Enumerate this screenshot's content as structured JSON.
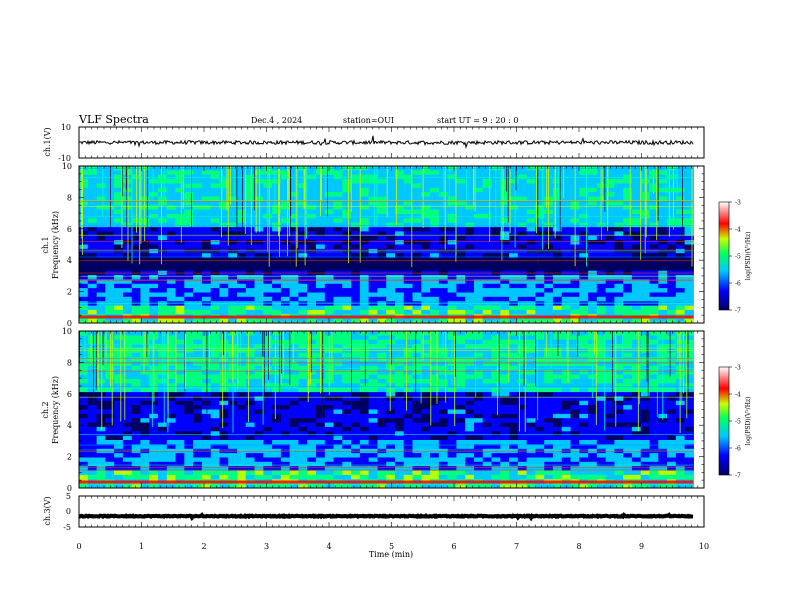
{
  "header": {
    "title": "VLF Spectra",
    "date": "Dec.4 , 2024",
    "station": "station=OUI",
    "start": "start  UT =  9 : 20 : 0"
  },
  "colors": {
    "spectrogram_low": "#000060",
    "spectrogram_mid": "#00c8ff",
    "spectrogram_high": "#ff0000",
    "trace": "#000000"
  },
  "chart_data": [
    {
      "type": "line",
      "name": "ch1-waveform",
      "ylabel": "ch.1(V)",
      "ylim": [
        -10,
        10
      ],
      "ytick_labels": [
        "10",
        "-10"
      ],
      "x_range_min": [
        0,
        9.83
      ],
      "baseline": 0,
      "amplitude": 1.2
    },
    {
      "type": "heatmap",
      "name": "ch1-spectrogram",
      "ylabel": [
        "ch.1",
        "Frequency (kHz)"
      ],
      "ylim": [
        0,
        10
      ],
      "yticks": [
        0,
        2,
        4,
        6,
        8,
        10
      ],
      "colorbar": {
        "label": "log(PSD)(V²/Hz)",
        "ticks": [
          "-3",
          "-4",
          "-5",
          "-6",
          "-7"
        ],
        "range": [
          -7,
          -3
        ]
      }
    },
    {
      "type": "heatmap",
      "name": "ch2-spectrogram",
      "ylabel": [
        "ch.2",
        "Frequency (kHz)"
      ],
      "ylim": [
        0,
        10
      ],
      "yticks": [
        0,
        2,
        4,
        6,
        8,
        10
      ],
      "colorbar": {
        "label": "log(PSD)(V²/Hz)",
        "ticks": [
          "-3",
          "-4",
          "-5",
          "-6",
          "-7"
        ],
        "range": [
          -7,
          -3
        ]
      }
    },
    {
      "type": "line",
      "name": "ch3-waveform",
      "ylabel": "ch.3(V)",
      "ylim": [
        -5,
        5
      ],
      "ytick_labels": [
        "5",
        "0",
        "-5"
      ],
      "x_range_min": [
        0,
        9.83
      ],
      "baseline": -1.5,
      "amplitude": 0.15
    }
  ],
  "xaxis": {
    "label": "Time (min)",
    "ticks": [
      "0",
      "1",
      "2",
      "3",
      "4",
      "5",
      "6",
      "7",
      "8",
      "9",
      "10"
    ],
    "range": [
      0,
      10
    ]
  }
}
